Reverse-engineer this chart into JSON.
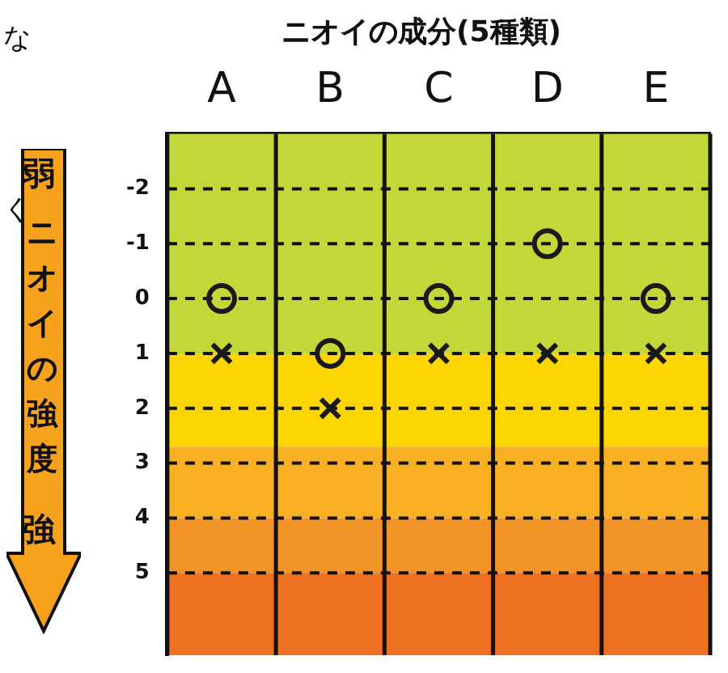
{
  "chart_data": {
    "type": "scatter",
    "title": "ニオイの成分(5種類)",
    "ylabel": "ニオイの強度",
    "annotations": [
      "な",
      "く",
      "弱",
      "強"
    ],
    "categories": [
      "A",
      "B",
      "C",
      "D",
      "E"
    ],
    "series": [
      {
        "color": "#1a1a1a",
        "marker": "circle",
        "values": [
          0,
          1,
          0,
          -1,
          0
        ]
      },
      {
        "color": "#1a1a1a",
        "marker": "cross",
        "values": [
          1,
          2,
          1,
          1,
          1
        ]
      }
    ],
    "ylim": [
      6.5,
      -3
    ],
    "yticks": [
      -2,
      -1,
      0,
      1,
      2,
      3,
      4,
      5
    ],
    "grid": true,
    "line_style": "dashed",
    "bands": [
      {
        "axis": "y",
        "from": -3,
        "to": 1,
        "color": "#c3d838"
      },
      {
        "axis": "y",
        "from": 1,
        "to": 2.7,
        "color": "#fdd500"
      },
      {
        "axis": "y",
        "from": 2.7,
        "to": 4,
        "color": "#f8b022"
      },
      {
        "axis": "y",
        "from": 4,
        "to": 5,
        "color": "#f39426"
      },
      {
        "axis": "y",
        "from": 5,
        "to": 6.5,
        "color": "#ee7021"
      }
    ]
  }
}
